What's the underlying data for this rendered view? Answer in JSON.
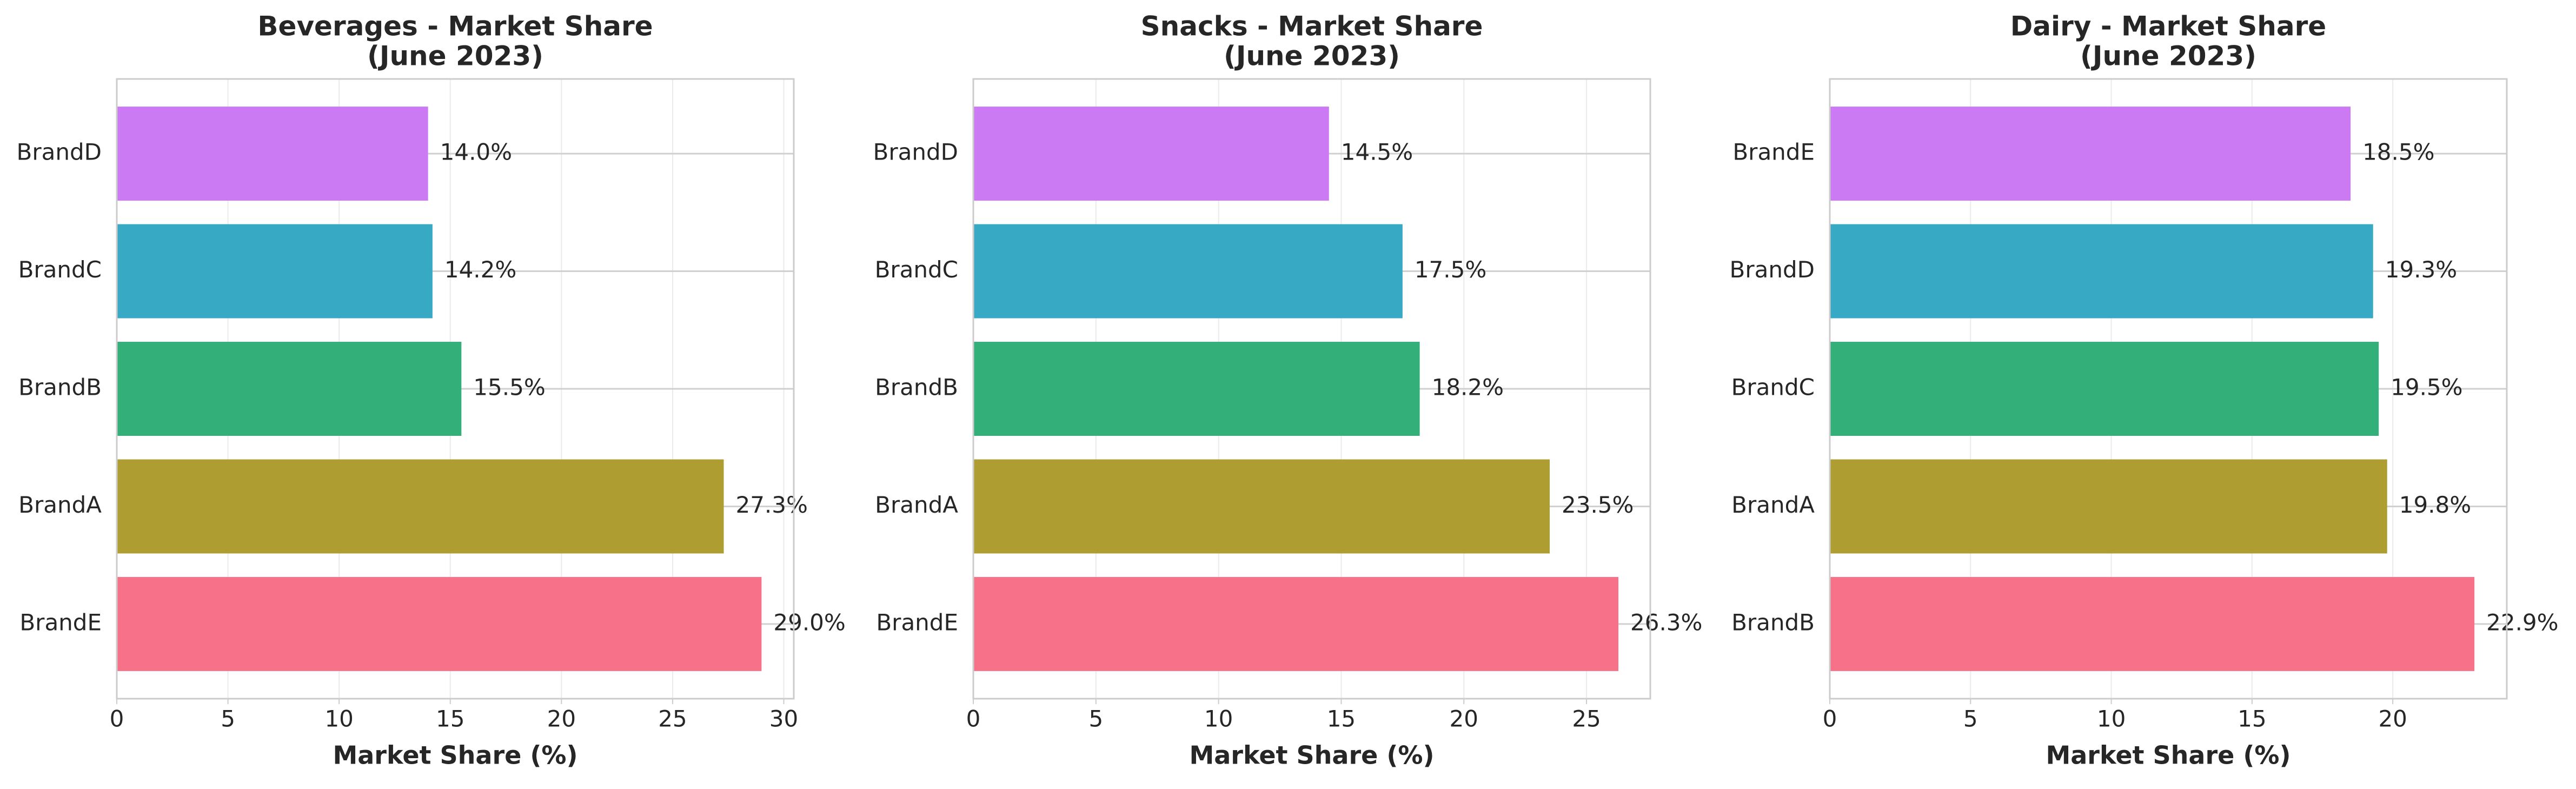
{
  "chart_data": [
    {
      "type": "barh",
      "title": [
        "Beverages - Market Share",
        "(June 2023)"
      ],
      "xlabel": "Market Share (%)",
      "categories": [
        "BrandD",
        "BrandC",
        "BrandB",
        "BrandA",
        "BrandE"
      ],
      "values": [
        14.0,
        14.2,
        15.5,
        27.3,
        29.0
      ],
      "value_labels": [
        "14.0%",
        "14.2%",
        "15.5%",
        "27.3%",
        "29.0%"
      ],
      "colors": [
        "#cc7af4",
        "#38a9c5",
        "#33b07a",
        "#ae9d31",
        "#f77189"
      ],
      "xlim": [
        0,
        30.45
      ],
      "xticks": [
        0,
        5,
        10,
        15,
        20,
        25,
        30
      ],
      "grid": true
    },
    {
      "type": "barh",
      "title": [
        "Snacks - Market Share",
        "(June 2023)"
      ],
      "xlabel": "Market Share (%)",
      "categories": [
        "BrandD",
        "BrandC",
        "BrandB",
        "BrandA",
        "BrandE"
      ],
      "values": [
        14.5,
        17.5,
        18.2,
        23.5,
        26.3
      ],
      "value_labels": [
        "14.5%",
        "17.5%",
        "18.2%",
        "23.5%",
        "26.3%"
      ],
      "colors": [
        "#cc7af4",
        "#38a9c5",
        "#33b07a",
        "#ae9d31",
        "#f77189"
      ],
      "xlim": [
        0,
        27.6
      ],
      "xticks": [
        0,
        5,
        10,
        15,
        20,
        25
      ],
      "grid": true
    },
    {
      "type": "barh",
      "title": [
        "Dairy - Market Share",
        "(June 2023)"
      ],
      "xlabel": "Market Share (%)",
      "categories": [
        "BrandE",
        "BrandD",
        "BrandC",
        "BrandA",
        "BrandB"
      ],
      "values": [
        18.5,
        19.3,
        19.5,
        19.8,
        22.9
      ],
      "value_labels": [
        "18.5%",
        "19.3%",
        "19.5%",
        "19.8%",
        "22.9%"
      ],
      "colors": [
        "#cc7af4",
        "#38a9c5",
        "#33b07a",
        "#ae9d31",
        "#f77189"
      ],
      "xlim": [
        0,
        24.05
      ],
      "xticks": [
        0,
        5,
        10,
        15,
        20
      ],
      "grid": true
    }
  ]
}
